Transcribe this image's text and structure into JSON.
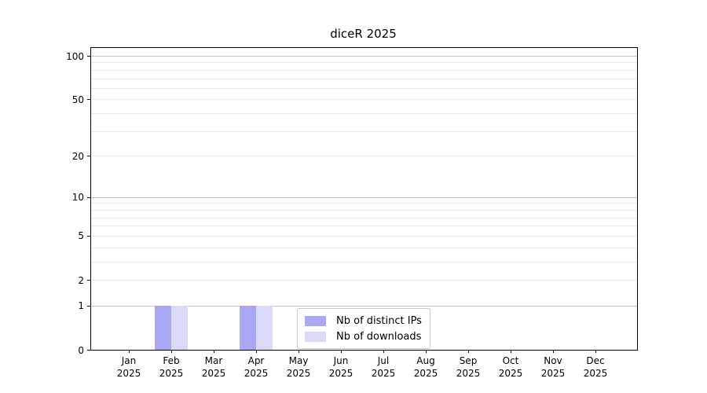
{
  "title": "diceR 2025",
  "chart_data": {
    "type": "bar",
    "title": "diceR 2025",
    "categories": [
      "Jan",
      "Feb",
      "Mar",
      "Apr",
      "May",
      "Jun",
      "Jul",
      "Aug",
      "Sep",
      "Oct",
      "Nov",
      "Dec"
    ],
    "year_label": "2025",
    "series": [
      {
        "name": "Nb of distinct IPs",
        "color": "#a8a8f5",
        "values": [
          0,
          1,
          0,
          1,
          0,
          0,
          0,
          0,
          0,
          0,
          0,
          0
        ]
      },
      {
        "name": "Nb of downloads",
        "color": "#dadaf8",
        "values": [
          0,
          1,
          0,
          1,
          0,
          0,
          0,
          0,
          0,
          0,
          0,
          0
        ]
      }
    ],
    "y_axis": {
      "scale": "log1p",
      "tick_labels": [
        100,
        50,
        20,
        10,
        5,
        2,
        1,
        0
      ],
      "major_gridlines": [
        100,
        10,
        1
      ],
      "minor_gridlines": [
        2,
        3,
        4,
        5,
        6,
        7,
        8,
        9,
        20,
        30,
        40,
        50,
        60,
        70,
        80,
        90
      ],
      "ylim": [
        0,
        113
      ]
    },
    "legend": {
      "position": "lower center",
      "entries": [
        "Nb of distinct IPs",
        "Nb of downloads"
      ]
    },
    "colors": {
      "bar_distinct_ips": "#a8a8f5",
      "bar_downloads": "#dadaf8",
      "major_grid": "#c4c4c4",
      "minor_grid": "#ececec",
      "spine": "#000000"
    }
  }
}
